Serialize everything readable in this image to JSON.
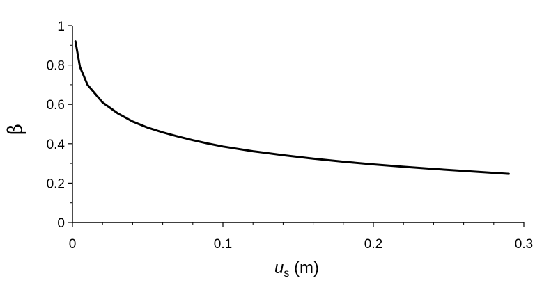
{
  "chart_data": {
    "type": "line",
    "xlabel_main": "u",
    "xlabel_sub": "s",
    "xlabel_unit": " (m)",
    "ylabel": "β",
    "xlim": [
      0,
      0.3
    ],
    "ylim": [
      0,
      1
    ],
    "x_ticks": [
      0,
      0.1,
      0.2,
      0.3
    ],
    "x_tick_labels": [
      "0",
      "0.1",
      "0.2",
      "0.3"
    ],
    "y_ticks": [
      0,
      0.2,
      0.4,
      0.6,
      0.8,
      1
    ],
    "y_tick_labels": [
      "0",
      "0.2",
      "0.4",
      "0.6",
      "0.8",
      "1"
    ],
    "grid": false,
    "legend": "none",
    "line_color": "#000000",
    "series": [
      {
        "x": [
          0.002,
          0.005,
          0.01,
          0.02,
          0.03,
          0.04,
          0.05,
          0.06,
          0.07,
          0.08,
          0.09,
          0.1,
          0.12,
          0.14,
          0.16,
          0.18,
          0.2,
          0.22,
          0.24,
          0.26,
          0.29
        ],
        "y": [
          0.92,
          0.79,
          0.7,
          0.61,
          0.555,
          0.513,
          0.482,
          0.458,
          0.437,
          0.418,
          0.401,
          0.386,
          0.362,
          0.342,
          0.324,
          0.309,
          0.295,
          0.283,
          0.272,
          0.262,
          0.247
        ]
      }
    ]
  }
}
